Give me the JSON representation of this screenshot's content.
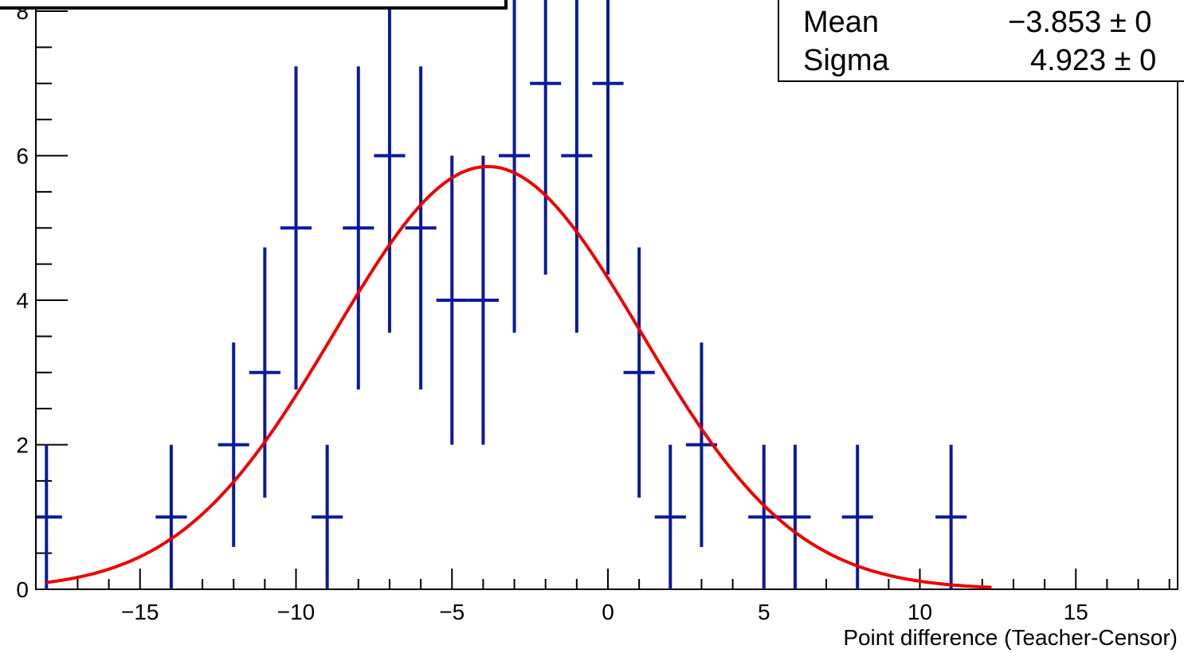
{
  "chart_data": {
    "type": "scatter",
    "title": "",
    "xlabel": "Point difference (Teacher-Censor)",
    "ylabel": "",
    "xlim": [
      -18.5,
      18.0
    ],
    "ylim": [
      0,
      8
    ],
    "x_ticks": [
      -15,
      -10,
      -5,
      0,
      5,
      10,
      15
    ],
    "x_tick_labels": [
      "−15",
      "−10",
      "−5",
      "0",
      "5",
      "10",
      "15"
    ],
    "y_ticks": [
      0,
      2,
      4,
      6,
      8
    ],
    "y_tick_labels": [
      "0",
      "2",
      "4",
      "6",
      "8"
    ],
    "grid": false,
    "legend": "none",
    "series": [
      {
        "style": "histogram points with error bars",
        "color": "#0b1a9a",
        "points": [
          {
            "x": -18,
            "y": 1,
            "err": 1.0
          },
          {
            "x": -14,
            "y": 1,
            "err": 1.0
          },
          {
            "x": -12,
            "y": 2,
            "err": 1.414
          },
          {
            "x": -11,
            "y": 3,
            "err": 1.732
          },
          {
            "x": -10,
            "y": 5,
            "err": 2.236
          },
          {
            "x": -9,
            "y": 1,
            "err": 1.0
          },
          {
            "x": -8,
            "y": 5,
            "err": 2.236
          },
          {
            "x": -7,
            "y": 6,
            "err": 2.449
          },
          {
            "x": -6,
            "y": 5,
            "err": 2.236
          },
          {
            "x": -5,
            "y": 4,
            "err": 2.0
          },
          {
            "x": -4,
            "y": 4,
            "err": 2.0
          },
          {
            "x": -3,
            "y": 6,
            "err": 2.449
          },
          {
            "x": -2,
            "y": 7,
            "err": 2.646
          },
          {
            "x": -1,
            "y": 6,
            "err": 2.449
          },
          {
            "x": 0,
            "y": 7,
            "err": 2.646
          },
          {
            "x": 1,
            "y": 3,
            "err": 1.732
          },
          {
            "x": 2,
            "y": 1,
            "err": 1.0
          },
          {
            "x": 3,
            "y": 2,
            "err": 1.414
          },
          {
            "x": 5,
            "y": 1,
            "err": 1.0
          },
          {
            "x": 6,
            "y": 1,
            "err": 1.0
          },
          {
            "x": 8,
            "y": 1,
            "err": 1.0
          },
          {
            "x": 11,
            "y": 1,
            "err": 1.0
          }
        ]
      },
      {
        "style": "gaussian fit curve",
        "color": "#ee0000",
        "fit": {
          "constant": 5.85,
          "mean": -3.853,
          "sigma": 4.923,
          "x_range": [
            -18.0,
            12.3
          ]
        }
      }
    ],
    "stats_box": {
      "rows": [
        {
          "label": "Mean",
          "value": "−3.853 ± 0"
        },
        {
          "label": "Sigma",
          "value": "4.923 ± 0"
        }
      ]
    }
  }
}
